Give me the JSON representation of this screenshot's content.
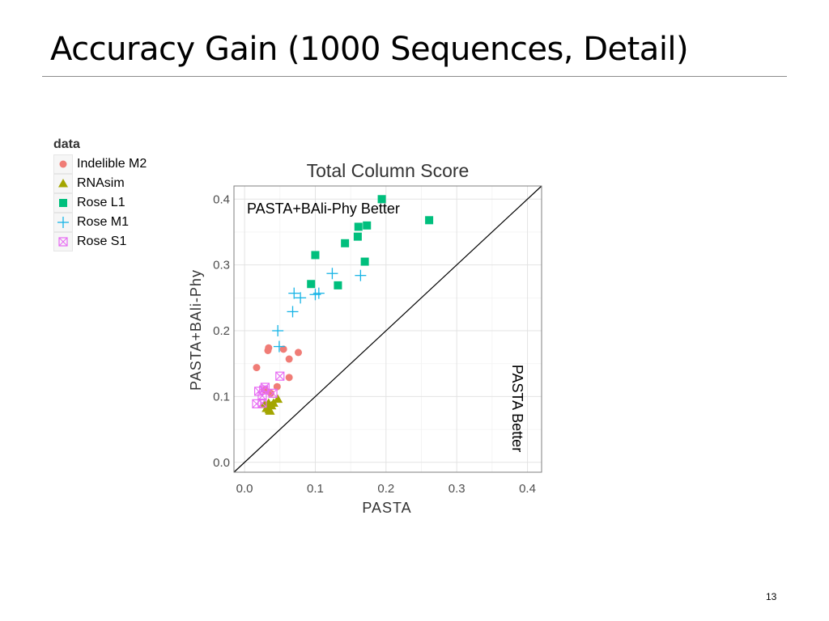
{
  "slide": {
    "title": "Accuracy Gain (1000 Sequences, Detail)",
    "page_number": "13"
  },
  "legend": {
    "title": "data",
    "items": [
      {
        "label": "Indelible M2",
        "shape": "circle",
        "color": "#F07C76"
      },
      {
        "label": "RNAsim",
        "shape": "triangle",
        "color": "#A3A500"
      },
      {
        "label": "Rose L1",
        "shape": "square",
        "color": "#00BF7D"
      },
      {
        "label": "Rose M1",
        "shape": "plus",
        "color": "#17B4E6"
      },
      {
        "label": "Rose S1",
        "shape": "boxcross",
        "color": "#E76BF3"
      }
    ]
  },
  "chart_data": {
    "type": "scatter",
    "title": "Total Column Score",
    "xlabel": "PASTA",
    "ylabel": "PASTA+BAli-Phy",
    "xlim": [
      -0.015,
      0.42
    ],
    "ylim": [
      -0.015,
      0.42
    ],
    "xticks": [
      "0.0",
      "0.1",
      "0.2",
      "0.3",
      "0.4"
    ],
    "yticks": [
      "0.0",
      "0.1",
      "0.2",
      "0.3",
      "0.4"
    ],
    "tick_values": [
      0.0,
      0.1,
      0.2,
      0.3,
      0.4
    ],
    "grid": true,
    "reference_line": "y = x",
    "annotations": [
      {
        "text": "PASTA+BAli-Phy Better",
        "region": "upper-left"
      },
      {
        "text": "PASTA Better",
        "region": "lower-right",
        "rotated": true
      }
    ],
    "series": [
      {
        "name": "Indelible M2",
        "shape": "circle",
        "color": "#F07C76",
        "x": [
          0.017,
          0.034,
          0.033,
          0.055,
          0.076,
          0.063,
          0.063,
          0.046,
          0.037,
          0.029
        ],
        "y": [
          0.144,
          0.174,
          0.17,
          0.172,
          0.167,
          0.157,
          0.129,
          0.115,
          0.105,
          0.11
        ]
      },
      {
        "name": "RNAsim",
        "shape": "triangle",
        "color": "#A3A500",
        "x": [
          0.028,
          0.034,
          0.038,
          0.047,
          0.031,
          0.035,
          0.041,
          0.036
        ],
        "y": [
          0.088,
          0.09,
          0.086,
          0.096,
          0.082,
          0.08,
          0.09,
          0.078
        ]
      },
      {
        "name": "Rose L1",
        "shape": "square",
        "color": "#00BF7D",
        "x": [
          0.194,
          0.261,
          0.161,
          0.173,
          0.16,
          0.142,
          0.1,
          0.17,
          0.094,
          0.132
        ],
        "y": [
          0.4,
          0.368,
          0.358,
          0.36,
          0.343,
          0.333,
          0.315,
          0.305,
          0.271,
          0.269
        ]
      },
      {
        "name": "Rose M1",
        "shape": "plus",
        "color": "#17B4E6",
        "x": [
          0.124,
          0.164,
          0.07,
          0.079,
          0.1,
          0.105,
          0.068,
          0.047,
          0.049
        ],
        "y": [
          0.287,
          0.284,
          0.257,
          0.25,
          0.255,
          0.257,
          0.229,
          0.2,
          0.176
        ]
      },
      {
        "name": "Rose S1",
        "shape": "boxcross",
        "color": "#E76BF3",
        "x": [
          0.05,
          0.029,
          0.02,
          0.025,
          0.04,
          0.017,
          0.025,
          0.027
        ],
        "y": [
          0.131,
          0.114,
          0.108,
          0.101,
          0.105,
          0.089,
          0.09,
          0.11
        ]
      }
    ]
  }
}
